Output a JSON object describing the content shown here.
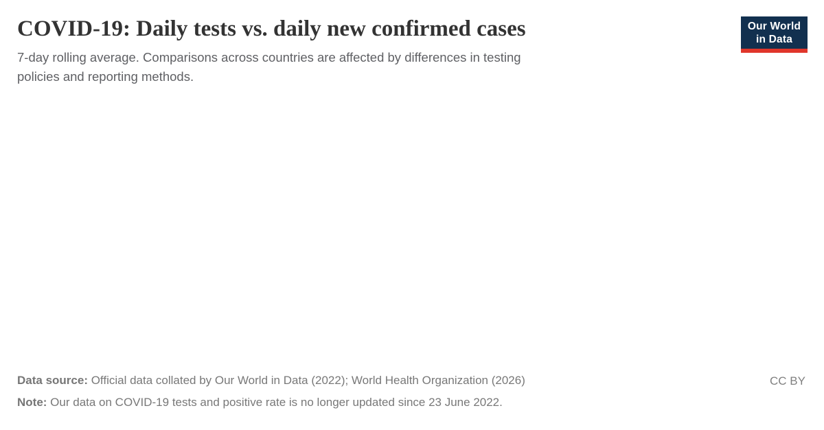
{
  "header": {
    "title": "COVID-19: Daily tests vs. daily new confirmed cases",
    "subtitle_lines": [
      "7-day rolling average. Comparisons across countries are affected by differences in testing",
      "policies and reporting methods."
    ]
  },
  "logo": {
    "line1": "Our World",
    "line2": "in Data",
    "bg_color": "#12304f",
    "accent_color": "#e0362b"
  },
  "footer": {
    "data_source_label": "Data source:",
    "data_source_text": " Official data collated by Our World in Data (2022); World Health Organization (2026)",
    "note_label": "Note:",
    "note_text": " Our data on COVID-19 tests and positive rate is no longer updated since 23 June 2022.",
    "license": "CC BY"
  },
  "colors": {
    "title": "#333333",
    "subtitle": "#5f6064",
    "footer_text": "#787878",
    "background": "#ffffff"
  },
  "chart_data": {
    "type": "scatter",
    "title": "COVID-19: Daily tests vs. daily new confirmed cases",
    "subtitle": "7-day rolling average. Comparisons across countries are affected by differences in testing policies and reporting methods.",
    "series": [],
    "xlabel": "",
    "ylabel": "",
    "plot_area_rendered_empty": true
  }
}
